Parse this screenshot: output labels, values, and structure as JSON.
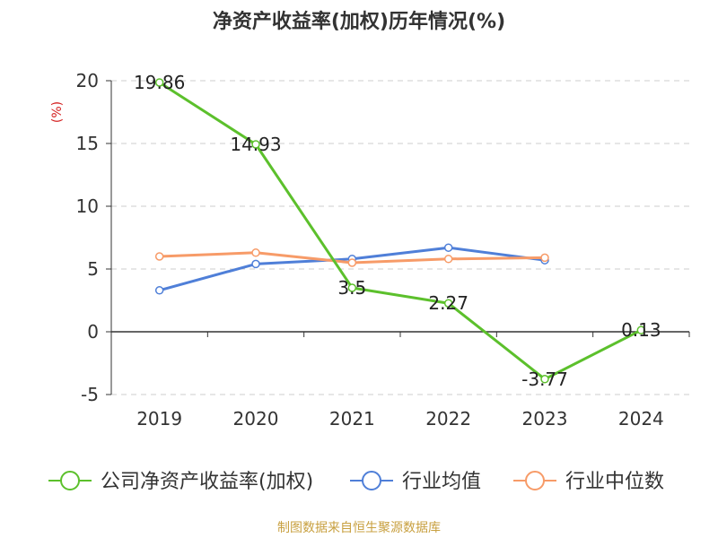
{
  "chart_data": {
    "type": "line",
    "title": "净资产收益率(加权)历年情况(%)",
    "ylabel": "(%)",
    "ylim": [
      -5,
      20
    ],
    "yticks": [
      -5,
      0,
      5,
      10,
      15,
      20
    ],
    "categories": [
      "2019",
      "2020",
      "2021",
      "2022",
      "2023",
      "2024"
    ],
    "grid": true,
    "legend_position": "bottom",
    "series": [
      {
        "name": "公司净资产收益率(加权)",
        "color": "#5cc02c",
        "values": [
          19.86,
          14.93,
          3.5,
          2.27,
          -3.77,
          0.13
        ],
        "data_labels": [
          "19.86",
          "14.93",
          "3.5",
          "2.27",
          "-3.77",
          "0.13"
        ]
      },
      {
        "name": "行业均值",
        "color": "#4f7fd8",
        "values": [
          3.3,
          5.4,
          5.8,
          6.7,
          5.7,
          null
        ]
      },
      {
        "name": "行业中位数",
        "color": "#f79b68",
        "values": [
          6.0,
          6.3,
          5.5,
          5.8,
          5.9,
          null
        ]
      }
    ]
  },
  "source": "制图数据来自恒生聚源数据库"
}
